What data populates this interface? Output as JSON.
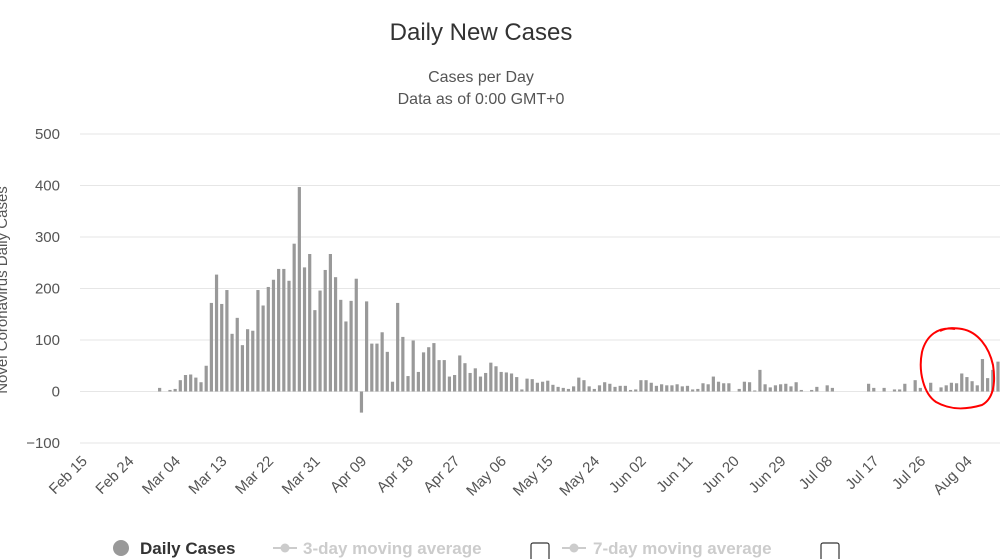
{
  "chart_data": {
    "type": "bar",
    "title": "Daily New Cases",
    "subtitle_lines": [
      "Cases per Day",
      "Data as of 0:00 GMT+0"
    ],
    "ylabel": "Novel Coronavirus Daily Cases",
    "ylim": [
      -100,
      500
    ],
    "yticks": [
      "500",
      "400",
      "300",
      "200",
      "100",
      "0",
      "−100"
    ],
    "ytick_values": [
      500,
      400,
      300,
      200,
      100,
      0,
      -100
    ],
    "grid": true,
    "x_start": "Feb 15",
    "xticks": [
      "Feb 15",
      "Feb 24",
      "Mar 04",
      "Mar 13",
      "Mar 22",
      "Mar 31",
      "Apr 09",
      "Apr 18",
      "Apr 27",
      "May 06",
      "May 15",
      "May 24",
      "Jun 02",
      "Jun 11",
      "Jun 20",
      "Jun 29",
      "Jul 08",
      "Jul 17",
      "Jul 26",
      "Aug 04"
    ],
    "xtick_day_index": [
      0,
      9,
      18,
      27,
      36,
      45,
      54,
      63,
      72,
      81,
      90,
      99,
      108,
      117,
      126,
      135,
      144,
      153,
      162,
      171
    ],
    "values": [
      0,
      0,
      0,
      0,
      0,
      0,
      0,
      0,
      0,
      0,
      0,
      0,
      0,
      0,
      0,
      7,
      0,
      3,
      5,
      22,
      32,
      33,
      27,
      18,
      50,
      172,
      227,
      170,
      197,
      112,
      143,
      90,
      121,
      118,
      197,
      167,
      203,
      217,
      238,
      238,
      215,
      287,
      397,
      241,
      267,
      158,
      196,
      236,
      267,
      222,
      178,
      136,
      176,
      219,
      -41,
      175,
      93,
      93,
      115,
      77,
      19,
      172,
      106,
      30,
      99,
      38,
      76,
      86,
      94,
      61,
      61,
      29,
      32,
      70,
      55,
      36,
      45,
      29,
      36,
      56,
      49,
      38,
      37,
      35,
      28,
      4,
      25,
      24,
      17,
      19,
      21,
      13,
      9,
      7,
      5,
      10,
      27,
      22,
      10,
      5,
      12,
      18,
      15,
      9,
      11,
      11,
      3,
      4,
      22,
      22,
      17,
      11,
      14,
      12,
      12,
      14,
      10,
      11,
      4,
      5,
      16,
      14,
      29,
      19,
      16,
      16,
      0,
      5,
      19,
      18,
      2,
      42,
      14,
      8,
      12,
      14,
      15,
      10,
      18,
      3,
      0,
      3,
      9,
      0,
      12,
      7,
      0,
      0,
      0,
      0,
      0,
      0,
      15,
      7,
      0,
      7,
      0,
      4,
      4,
      15,
      0,
      22,
      7,
      0,
      17,
      0,
      8,
      12,
      17,
      16,
      35,
      28,
      20,
      12,
      63,
      26,
      42,
      58,
      80,
      46,
      38,
      43
    ],
    "legend": [
      {
        "label": "Daily Cases",
        "active": true,
        "color": "#999999"
      },
      {
        "label": "3-day moving average",
        "active": false,
        "color": "#cccccc"
      },
      {
        "label": "7-day moving average",
        "active": false,
        "color": "#cccccc"
      }
    ],
    "legend_placement": "bottom"
  },
  "colors": {
    "bar": "#999999",
    "grid": "#e6e6e6",
    "annotation": "#ff0000",
    "legend_inactive": "#cccccc"
  }
}
